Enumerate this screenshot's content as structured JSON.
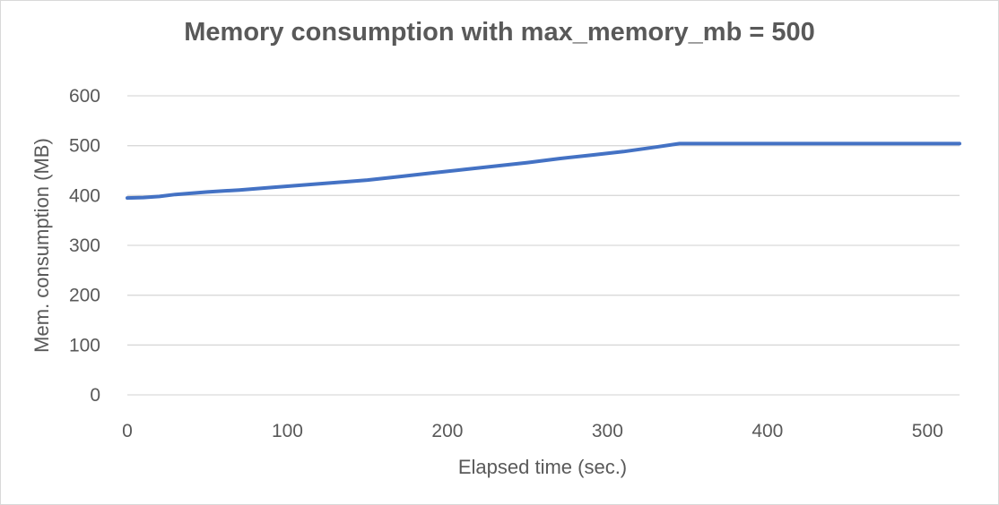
{
  "chart_data": {
    "type": "line",
    "title": "Memory consumption with max_memory_mb = 500",
    "xlabel": "Elapsed time (sec.)",
    "ylabel": "Mem. consumption (MB)",
    "xlim": [
      0,
      520
    ],
    "ylim": [
      0,
      600
    ],
    "xticks": [
      0,
      100,
      200,
      300,
      400,
      500
    ],
    "yticks": [
      0,
      100,
      200,
      300,
      400,
      500,
      600
    ],
    "grid": "horizontal",
    "legend": "none",
    "series": [
      {
        "color": "#4472c4",
        "x": [
          0,
          10,
          20,
          30,
          50,
          70,
          90,
          110,
          130,
          150,
          170,
          190,
          210,
          230,
          250,
          270,
          290,
          310,
          330,
          345,
          400,
          450,
          520
        ],
        "y": [
          395,
          396,
          398,
          402,
          407,
          411,
          416,
          421,
          426,
          431,
          438,
          445,
          452,
          459,
          466,
          474,
          481,
          488,
          497,
          504,
          504,
          504,
          504
        ]
      }
    ]
  }
}
